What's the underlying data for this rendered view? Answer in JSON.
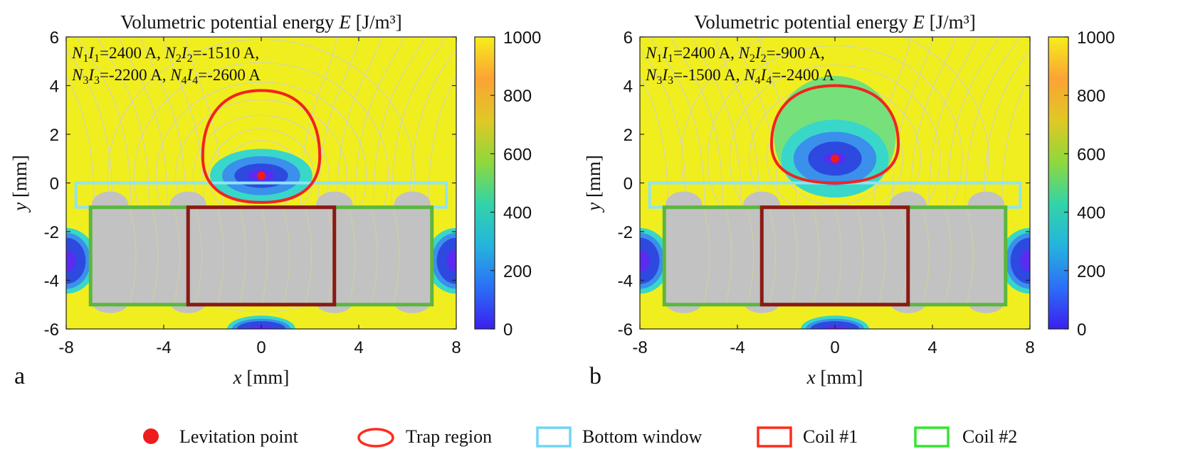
{
  "chart_data": [
    {
      "type": "heatmap",
      "panel_label": "a",
      "title": "Volumetric potential energy E [J/m³]",
      "title_parts": {
        "prefix": "Volumetric potential energy ",
        "symbol": "E",
        "unit": " [J/m³]"
      },
      "xlabel": {
        "symbol": "x",
        "unit": " [mm]"
      },
      "ylabel": {
        "symbol": "y",
        "unit": " [mm]"
      },
      "xlim": [
        -8,
        8
      ],
      "ylim": [
        -6,
        6
      ],
      "xticks": [
        -8,
        -4,
        0,
        4,
        8
      ],
      "yticks": [
        -6,
        -4,
        -2,
        0,
        2,
        4,
        6
      ],
      "colorbar": {
        "min": 0,
        "max": 1000,
        "ticks": [
          0,
          200,
          400,
          600,
          800,
          1000
        ]
      },
      "annotation_lines": [
        [
          {
            "sym": "N",
            "sub": "1"
          },
          {
            "sym": "I",
            "sub": "1"
          },
          {
            "text": "=2400 A, "
          },
          {
            "sym": "N",
            "sub": "2"
          },
          {
            "sym": "I",
            "sub": "2"
          },
          {
            "text": "=-1510 A,"
          }
        ],
        [
          {
            "sym": "N",
            "sub": "3"
          },
          {
            "sym": "I",
            "sub": "3"
          },
          {
            "text": "=-2200 A, "
          },
          {
            "sym": "N",
            "sub": "4"
          },
          {
            "sym": "I",
            "sub": "4"
          },
          {
            "text": "=-2600 A"
          }
        ]
      ],
      "currents_A": {
        "N1I1": 2400,
        "N2I2": -1510,
        "N3I3": -2200,
        "N4I4": -2600
      },
      "levitation_point": {
        "x": 0,
        "y": 0.3
      },
      "trap_region": {
        "x_range": [
          -2.4,
          2.4
        ],
        "y_range": [
          -0.8,
          3.8
        ]
      },
      "energy_well": {
        "x_half_widths": [
          2.1,
          1.6,
          1.1,
          0.55
        ],
        "y_half_heights": [
          1.1,
          0.8,
          0.5,
          0.25
        ],
        "center_y": 0.3
      },
      "bottom_window": {
        "x_range": [
          -7.6,
          7.6
        ],
        "y_range": [
          -1.0,
          0.0
        ]
      },
      "coil_1": {
        "x_range": [
          -3,
          3
        ],
        "y_range": [
          -5,
          -1
        ]
      },
      "coil_2": {
        "x_range": [
          -7,
          7
        ],
        "y_range": [
          -5,
          -1
        ]
      },
      "side_wells_center_y": -3.2,
      "bottom_well": {
        "x": 0,
        "y": -6
      }
    },
    {
      "type": "heatmap",
      "panel_label": "b",
      "title": "Volumetric potential energy E [J/m³]",
      "title_parts": {
        "prefix": "Volumetric potential energy ",
        "symbol": "E",
        "unit": " [J/m³]"
      },
      "xlabel": {
        "symbol": "x",
        "unit": " [mm]"
      },
      "ylabel": {
        "symbol": "y",
        "unit": " [mm]"
      },
      "xlim": [
        -8,
        8
      ],
      "ylim": [
        -6,
        6
      ],
      "xticks": [
        -8,
        -4,
        0,
        4,
        8
      ],
      "yticks": [
        -6,
        -4,
        -2,
        0,
        2,
        4,
        6
      ],
      "colorbar": {
        "min": 0,
        "max": 1000,
        "ticks": [
          0,
          200,
          400,
          600,
          800,
          1000
        ]
      },
      "annotation_lines": [
        [
          {
            "sym": "N",
            "sub": "1"
          },
          {
            "sym": "I",
            "sub": "1"
          },
          {
            "text": "=2400 A, "
          },
          {
            "sym": "N",
            "sub": "2"
          },
          {
            "sym": "I",
            "sub": "2"
          },
          {
            "text": "=-900 A,"
          }
        ],
        [
          {
            "sym": "N",
            "sub": "3"
          },
          {
            "sym": "I",
            "sub": "3"
          },
          {
            "text": "=-1500 A, "
          },
          {
            "sym": "N",
            "sub": "4"
          },
          {
            "sym": "I",
            "sub": "4"
          },
          {
            "text": "=-2400 A"
          }
        ]
      ],
      "currents_A": {
        "N1I1": 2400,
        "N2I2": -900,
        "N3I3": -1500,
        "N4I4": -2400
      },
      "levitation_point": {
        "x": 0,
        "y": 1.0
      },
      "trap_region": {
        "x_range": [
          -2.6,
          2.6
        ],
        "y_range": [
          0.0,
          4.0
        ]
      },
      "energy_well": {
        "x_half_widths": [
          2.5,
          2.2,
          1.7,
          1.1,
          0.45
        ],
        "y_half_heights": [
          2.5,
          1.6,
          1.1,
          0.7,
          0.25
        ],
        "center_y": 1.0
      },
      "bottom_window": {
        "x_range": [
          -7.6,
          7.6
        ],
        "y_range": [
          -1.0,
          0.0
        ]
      },
      "coil_1": {
        "x_range": [
          -3,
          3
        ],
        "y_range": [
          -5,
          -1
        ]
      },
      "coil_2": {
        "x_range": [
          -7,
          7
        ],
        "y_range": [
          -5,
          -1
        ]
      },
      "side_wells_center_y": -3.2,
      "bottom_well": {
        "x": 0,
        "y": -6
      }
    }
  ],
  "colors": {
    "background": "#f1ee1f",
    "contour": "#c9cfe0",
    "coil_fill": "#c2c2c2",
    "trap": "#f2231f",
    "levitation": "#ee1c1c",
    "bottom_window": "#8fe3f2",
    "coil_1": "#8b1a14",
    "coil_2": "#5cb63e",
    "well_levels": [
      "#76e07a",
      "#38d7c9",
      "#3a90ea",
      "#2d49e0",
      "#5a2bf0"
    ],
    "colorbar_stops": [
      "#3b1ff0",
      "#2b6ff6",
      "#25b4dd",
      "#31d4a8",
      "#8fd83c",
      "#e0c825",
      "#fba335",
      "#f6ee1c"
    ],
    "legend_trap": "#ff2b1f",
    "legend_window": "#6fd6f5",
    "legend_coil1": "#ff2b1f",
    "legend_coil2": "#33e62f"
  },
  "legend": [
    {
      "label": "Levitation point",
      "icon": "red-dot"
    },
    {
      "label": "Trap region",
      "icon": "red-ellipse"
    },
    {
      "label": "Bottom window",
      "icon": "cyan-rectangle"
    },
    {
      "label": "Coil #1",
      "icon": "red-rectangle"
    },
    {
      "label": "Coil #2",
      "icon": "green-rectangle"
    }
  ]
}
